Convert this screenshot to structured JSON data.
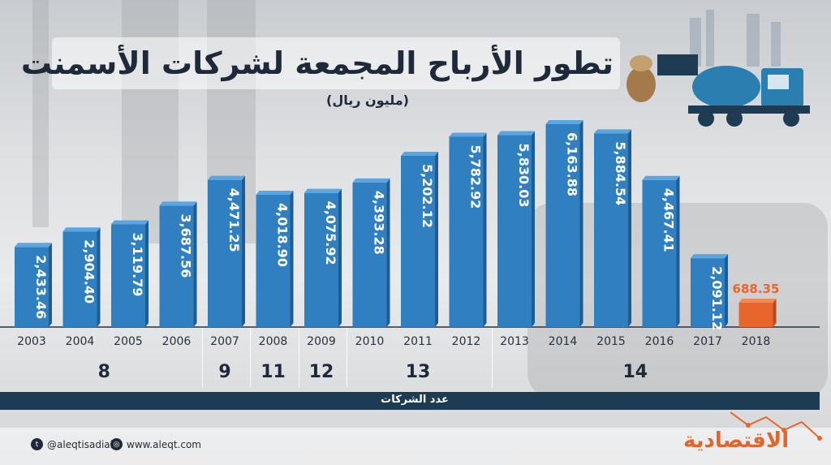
{
  "title": "تطور الأرباح المجمعة لشركات الأسمنت",
  "subtitle": "(مليون ريال)",
  "companies_label": "عدد الشركات",
  "company_groups": [
    {
      "label": "8",
      "from": "2003",
      "to": "2006"
    },
    {
      "label": "9",
      "from": "2007",
      "to": "2007"
    },
    {
      "label": "11",
      "from": "2008",
      "to": "2008"
    },
    {
      "label": "12",
      "from": "2009",
      "to": "2009"
    },
    {
      "label": "13",
      "from": "2010",
      "to": "2012"
    },
    {
      "label": "14",
      "from": "2013",
      "to": "2018"
    }
  ],
  "footer": {
    "twitter": "@aleqtisadiah",
    "website": "www.aleqt.com",
    "logo": "الاقتصادية"
  },
  "colors": {
    "bar": "#2f7fc1",
    "bar_top": "#5ba6e0",
    "bar_side": "#1d5d94",
    "highlight": "#e8652b",
    "title": "#1e2a39"
  },
  "chart_data": {
    "type": "bar",
    "title": "تطور الأرباح المجمعة لشركات الأسمنت",
    "subtitle": "(مليون ريال)",
    "categories": [
      "2003",
      "2004",
      "2005",
      "2006",
      "2007",
      "2008",
      "2009",
      "2010",
      "2011",
      "2012",
      "2013",
      "2014",
      "2015",
      "2016",
      "2017",
      "2018"
    ],
    "values": [
      2433.46,
      2904.4,
      3119.79,
      3687.56,
      4471.25,
      4018.9,
      4075.92,
      4393.28,
      5202.12,
      5782.92,
      5830.03,
      6163.88,
      5884.54,
      4467.41,
      2091.12,
      688.35
    ],
    "labels": [
      "2,433.46",
      "2,904.40",
      "3,119.79",
      "3,687.56",
      "4,471.25",
      "4,018.90",
      "4,075.92",
      "4,393.28",
      "5,202.12",
      "5,782.92",
      "5,830.03",
      "6,163.88",
      "5,884.54",
      "4,467.41",
      "2,091.12",
      "688.35"
    ],
    "highlight_category": "2018",
    "ylim": [
      0,
      6400
    ]
  }
}
